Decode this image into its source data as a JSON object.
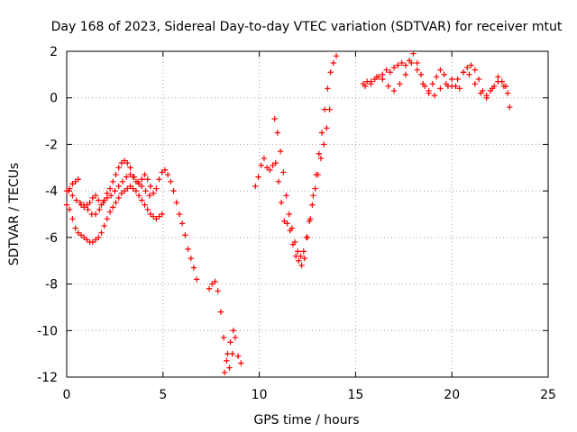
{
  "chart_data": {
    "type": "scatter",
    "title": "Day 168 of 2023, Sidereal Day-to-day VTEC variation (SDTVAR) for receiver mtut",
    "xlabel": "GPS time / hours",
    "ylabel": "SDTVAR / TECUs",
    "xlim": [
      0,
      25
    ],
    "ylim": [
      -12,
      2
    ],
    "xticks": [
      0,
      5,
      10,
      15,
      20,
      25
    ],
    "yticks": [
      -12,
      -10,
      -8,
      -6,
      -4,
      -2,
      0,
      2
    ],
    "xtick_labels": [
      "0",
      "5",
      "10",
      "15",
      "20",
      "25"
    ],
    "ytick_labels": [
      "-12",
      "-10",
      "-8",
      "-6",
      "-4",
      "-2",
      "0",
      "2"
    ],
    "grid": true,
    "marker": "+",
    "color": "#ff0000",
    "series": [
      {
        "name": "SDTVAR",
        "x": [
          0.0,
          0.15,
          0.3,
          0.45,
          0.6,
          0.75,
          0.9,
          1.05,
          1.2,
          1.35,
          1.5,
          1.65,
          1.8,
          1.95,
          2.1,
          2.25,
          2.4,
          2.55,
          2.7,
          2.85,
          3.0,
          3.15,
          3.3,
          3.45,
          3.6,
          3.75,
          3.9,
          4.05,
          4.2,
          4.35,
          4.5,
          4.65,
          4.8,
          4.95,
          5.1,
          5.25,
          5.4,
          5.55,
          5.7,
          5.85,
          6.0,
          6.15,
          6.3,
          6.45,
          6.6,
          6.75,
          0.0,
          0.15,
          0.3,
          0.45,
          0.6,
          0.75,
          0.9,
          1.05,
          1.2,
          1.35,
          1.5,
          1.65,
          1.8,
          1.95,
          2.1,
          2.25,
          2.4,
          2.55,
          2.7,
          2.85,
          3.0,
          3.15,
          3.3,
          3.45,
          3.6,
          3.75,
          3.9,
          4.05,
          4.2,
          4.35,
          4.5,
          4.65,
          4.8,
          4.95,
          0.1,
          0.3,
          0.5,
          0.7,
          0.9,
          1.1,
          1.3,
          1.5,
          1.7,
          1.9,
          2.1,
          2.3,
          2.5,
          2.7,
          2.9,
          3.1,
          3.3,
          3.5,
          3.7,
          3.9,
          4.1,
          4.3,
          7.4,
          7.55,
          7.7,
          7.85,
          8.0,
          8.15,
          8.3,
          8.45,
          8.6,
          8.75,
          8.9,
          9.05,
          8.2,
          8.35,
          8.5,
          8.65,
          9.8,
          9.95,
          10.1,
          10.25,
          10.4,
          10.55,
          10.7,
          10.85,
          11.0,
          11.15,
          11.3,
          11.45,
          11.6,
          11.75,
          11.9,
          12.05,
          12.2,
          12.35,
          12.5,
          12.65,
          12.8,
          12.95,
          13.1,
          13.25,
          13.4,
          13.55,
          13.7,
          13.85,
          14.0,
          10.8,
          10.95,
          11.1,
          11.25,
          11.4,
          11.55,
          11.7,
          11.85,
          12.0,
          12.15,
          12.3,
          12.45,
          12.6,
          12.75,
          12.9,
          13.05,
          13.2,
          13.35,
          13.5,
          13.65,
          15.4,
          15.6,
          15.8,
          16.0,
          16.2,
          16.4,
          16.6,
          16.8,
          17.0,
          17.2,
          17.4,
          17.6,
          17.8,
          18.0,
          18.2,
          18.4,
          18.6,
          18.8,
          19.0,
          19.2,
          19.4,
          19.6,
          19.8,
          20.0,
          20.2,
          20.4,
          20.6,
          20.8,
          21.0,
          21.2,
          21.4,
          21.6,
          21.8,
          22.0,
          22.2,
          22.4,
          22.6,
          22.8,
          23.0,
          15.5,
          15.8,
          16.1,
          16.4,
          16.7,
          17.0,
          17.3,
          17.6,
          17.9,
          18.2,
          18.5,
          18.8,
          19.1,
          19.4,
          19.7,
          20.0,
          20.3,
          20.6,
          20.9,
          21.2,
          21.5,
          21.8,
          22.1,
          22.4,
          22.7,
          22.9
        ],
        "y": [
          -4.0,
          -3.9,
          -3.7,
          -3.6,
          -3.5,
          -4.6,
          -4.7,
          -4.6,
          -4.5,
          -4.3,
          -4.2,
          -4.4,
          -4.6,
          -4.4,
          -4.1,
          -3.9,
          -3.6,
          -3.3,
          -3.0,
          -2.8,
          -2.7,
          -2.8,
          -3.0,
          -3.4,
          -3.6,
          -3.7,
          -3.5,
          -3.3,
          -3.5,
          -3.8,
          -4.1,
          -3.9,
          -3.5,
          -3.2,
          -3.1,
          -3.3,
          -3.6,
          -4.0,
          -4.5,
          -5.0,
          -5.4,
          -5.9,
          -6.5,
          -6.9,
          -7.3,
          -7.8,
          -4.6,
          -4.8,
          -5.2,
          -5.6,
          -5.8,
          -5.9,
          -6.0,
          -6.1,
          -6.2,
          -6.2,
          -6.1,
          -6.0,
          -5.8,
          -5.5,
          -5.2,
          -4.9,
          -4.7,
          -4.5,
          -4.3,
          -4.1,
          -4.0,
          -3.9,
          -3.8,
          -3.9,
          -4.0,
          -4.2,
          -4.4,
          -4.6,
          -4.8,
          -5.0,
          -5.1,
          -5.2,
          -5.1,
          -5.0,
          -4.0,
          -4.2,
          -4.4,
          -4.5,
          -4.6,
          -4.8,
          -5.0,
          -5.0,
          -4.8,
          -4.5,
          -4.3,
          -4.2,
          -4.0,
          -3.8,
          -3.6,
          -3.4,
          -3.3,
          -3.4,
          -3.6,
          -3.8,
          -4.0,
          -4.2,
          -8.2,
          -8.0,
          -7.9,
          -8.3,
          -9.2,
          -10.3,
          -11.3,
          -11.6,
          -11.0,
          -10.3,
          -11.1,
          -11.4,
          -11.8,
          -11.0,
          -10.5,
          -10.0,
          -3.8,
          -3.4,
          -2.9,
          -2.6,
          -3.0,
          -3.1,
          -2.9,
          -2.8,
          -3.6,
          -4.5,
          -5.3,
          -5.4,
          -5.7,
          -6.3,
          -6.8,
          -7.0,
          -7.2,
          -6.9,
          -6.0,
          -5.2,
          -4.2,
          -3.3,
          -2.4,
          -1.5,
          -0.5,
          0.4,
          1.1,
          1.5,
          1.8,
          -0.9,
          -1.5,
          -2.3,
          -3.2,
          -4.2,
          -5.0,
          -5.6,
          -6.2,
          -6.6,
          -6.8,
          -6.6,
          -6.0,
          -5.3,
          -4.6,
          -3.9,
          -3.3,
          -2.6,
          -2.0,
          -1.3,
          -0.5,
          0.6,
          0.7,
          0.6,
          0.8,
          0.9,
          1.0,
          1.2,
          1.1,
          1.3,
          1.4,
          1.5,
          1.4,
          1.6,
          1.9,
          1.5,
          1.0,
          0.5,
          0.2,
          0.6,
          0.9,
          1.2,
          1.0,
          0.5,
          0.8,
          0.5,
          0.4,
          1.1,
          1.3,
          1.4,
          1.2,
          0.8,
          0.3,
          0.1,
          0.3,
          0.5,
          0.9,
          0.7,
          0.5,
          -0.4,
          0.5,
          0.7,
          0.9,
          0.8,
          0.5,
          0.3,
          0.6,
          1.0,
          1.5,
          1.2,
          0.6,
          0.3,
          0.1,
          0.4,
          0.6,
          0.5,
          0.8,
          1.1,
          1.0,
          0.6,
          0.2,
          0.0,
          0.4,
          0.7,
          0.5,
          0.2
        ]
      }
    ]
  }
}
